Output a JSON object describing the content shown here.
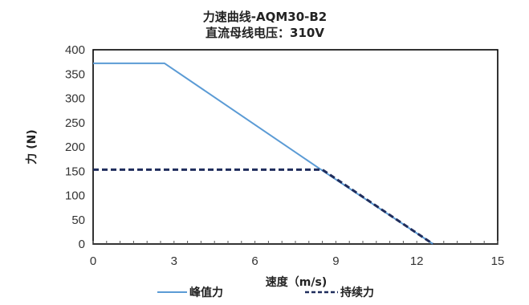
{
  "colors": {
    "peak": "#5b9bd5",
    "continuous": "#1f2d5c",
    "axis": "#000000",
    "tick": "#555555"
  },
  "chart_data": {
    "type": "line",
    "title": "力速曲线-AQM30-B2",
    "subtitle": "直流母线电压：310V",
    "xlabel": "速度（m/s)",
    "ylabel": "力 (N)",
    "xlim": [
      0,
      15
    ],
    "ylim": [
      0,
      400
    ],
    "xticks": [
      0,
      3,
      6,
      9,
      12,
      15
    ],
    "yticks": [
      0,
      50,
      100,
      150,
      200,
      250,
      300,
      350,
      400
    ],
    "grid": false,
    "legend_position": "bottom",
    "series": [
      {
        "name": "峰值力",
        "style": "solid",
        "x": [
          0,
          2.65,
          8.4,
          12.6
        ],
        "y": [
          372,
          372,
          155,
          0
        ]
      },
      {
        "name": "持续力",
        "style": "dashed",
        "x": [
          0,
          8.5,
          12.6
        ],
        "y": [
          153,
          153,
          0
        ]
      }
    ]
  }
}
